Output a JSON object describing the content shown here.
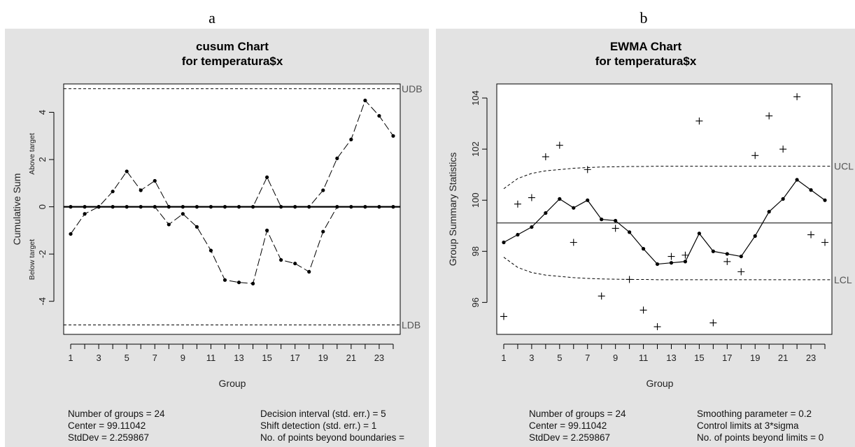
{
  "figure_labels": [
    "a",
    "b"
  ],
  "panels": [
    {
      "title": [
        "cusum Chart",
        "for temperatura$x"
      ],
      "stats_left": [
        "Number of groups = 24",
        "Center = 99.11042",
        "StdDev = 2.259867"
      ],
      "stats_right": [
        "Decision interval (std. err.) = 5",
        "Shift detection (std. err.) = 1",
        "No. of points beyond boundaries ="
      ]
    },
    {
      "title": [
        "EWMA Chart",
        "for temperatura$x"
      ],
      "stats_left": [
        "Number of groups = 24",
        "Center = 99.11042",
        "StdDev = 2.259867"
      ],
      "stats_right": [
        "Smoothing parameter =  0.2",
        "Control limits at 3*sigma",
        "No. of points beyond limits = 0"
      ]
    }
  ],
  "chart_data": [
    {
      "type": "line",
      "title": "cusum Chart\nfor temperatura$x",
      "xlabel": "Group",
      "ylabel": "Cumulative Sum",
      "ylabel_upper": "Above target",
      "ylabel_lower": "Below target",
      "xlim": [
        0.5,
        24.5
      ],
      "ylim": [
        -5.4,
        5.2
      ],
      "x_ticks": [
        1,
        3,
        5,
        7,
        9,
        11,
        13,
        15,
        17,
        19,
        21,
        23
      ],
      "y_ticks": [
        -4,
        -2,
        0,
        2,
        4
      ],
      "x": [
        1,
        2,
        3,
        4,
        5,
        6,
        7,
        8,
        9,
        10,
        11,
        12,
        13,
        14,
        15,
        16,
        17,
        18,
        19,
        20,
        21,
        22,
        23,
        24
      ],
      "series": [
        {
          "values": [
            0,
            0,
            0,
            0.65,
            1.5,
            0.7,
            1.1,
            0,
            0,
            0,
            0,
            0,
            0,
            0,
            1.25,
            0,
            0,
            0,
            0.7,
            2.05,
            2.85,
            4.5,
            3.85,
            3.0
          ]
        },
        {
          "values": [
            -1.15,
            -0.3,
            0,
            0,
            0,
            0,
            0,
            -0.75,
            -0.3,
            -0.85,
            -1.85,
            -3.1,
            -3.2,
            -3.25,
            -1.0,
            -2.25,
            -2.4,
            -2.75,
            -1.05,
            0,
            0,
            0,
            0,
            0
          ]
        }
      ],
      "reference_lines": [
        {
          "label": "UDB",
          "value": 5,
          "style": "dashed"
        },
        {
          "label": "LDB",
          "value": -5,
          "style": "dashed"
        },
        {
          "value": 0,
          "style": "solid-bold"
        }
      ],
      "grid": false
    },
    {
      "type": "line",
      "title": "EWMA Chart\nfor temperatura$x",
      "xlabel": "Group",
      "ylabel": "Group Summary Statistics",
      "xlim": [
        0.5,
        24.5
      ],
      "ylim": [
        94.75,
        104.55
      ],
      "x_ticks": [
        1,
        3,
        5,
        7,
        9,
        11,
        13,
        15,
        17,
        19,
        21,
        23
      ],
      "y_ticks": [
        96,
        98,
        100,
        102,
        104
      ],
      "x": [
        1,
        2,
        3,
        4,
        5,
        6,
        7,
        8,
        9,
        10,
        11,
        12,
        13,
        14,
        15,
        16,
        17,
        18,
        19,
        20,
        21,
        22,
        23,
        24
      ],
      "series": [
        {
          "values": [
            95.45,
            99.85,
            100.1,
            101.7,
            102.15,
            98.35,
            101.2,
            96.25,
            98.9,
            96.9,
            95.7,
            95.05,
            97.8,
            97.85,
            103.1,
            95.2,
            97.6,
            97.2,
            101.75,
            103.3,
            102.0,
            104.05,
            98.65,
            98.35
          ]
        },
        {
          "values": [
            98.35,
            98.65,
            98.95,
            99.5,
            100.05,
            99.7,
            100.0,
            99.25,
            99.2,
            98.75,
            98.1,
            97.5,
            97.55,
            97.6,
            98.7,
            98.0,
            97.9,
            97.8,
            98.6,
            99.55,
            100.05,
            100.8,
            100.4,
            100.0
          ]
        }
      ],
      "center_line": 99.11,
      "ucl": {
        "label": "UCL",
        "values": [
          100.45,
          100.85,
          101.05,
          101.15,
          101.2,
          101.25,
          101.28,
          101.3,
          101.31,
          101.32,
          101.32,
          101.33,
          101.33,
          101.33,
          101.33,
          101.33,
          101.33,
          101.33,
          101.33,
          101.33,
          101.33,
          101.33,
          101.33,
          101.33
        ]
      },
      "lcl": {
        "label": "LCL",
        "values": [
          97.77,
          97.37,
          97.17,
          97.07,
          97.02,
          96.97,
          96.94,
          96.92,
          96.91,
          96.9,
          96.9,
          96.89,
          96.89,
          96.89,
          96.89,
          96.89,
          96.89,
          96.89,
          96.89,
          96.89,
          96.89,
          96.89,
          96.89,
          96.89
        ]
      },
      "grid": false
    }
  ]
}
